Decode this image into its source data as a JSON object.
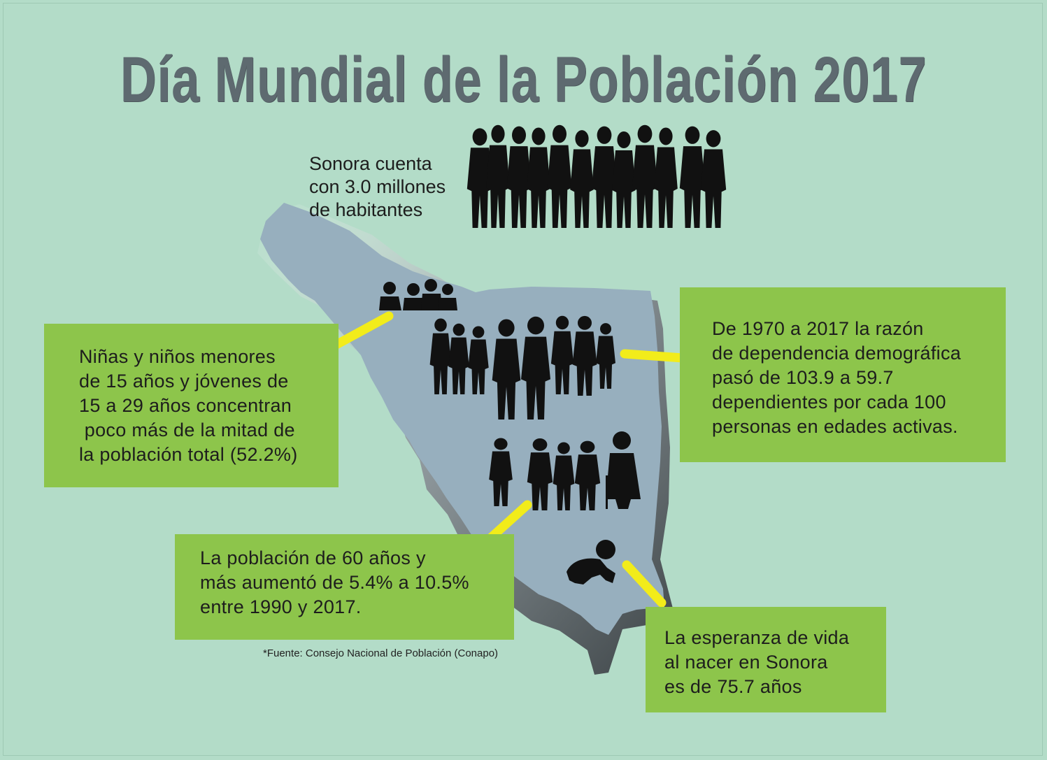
{
  "title": "Día Mundial de la Población 2017",
  "intro": "Sonora cuenta\ncon 3.0 millones\nde habitantes",
  "callouts": {
    "youth": "Niñas y niños menores\nde 15 años y jóvenes de\n15 a 29 años concentran\n poco más de la mitad de\nla población total (52.2%)",
    "dependency": "De 1970 a 2017 la razón\nde dependencia demográfica\npasó de 103.9 a 59.7\ndependientes por cada 100\npersonas en edades activas.",
    "elderly": "La población de 60 años y\nmás aumentó de 5.4% a 10.5%\nentre 1990 y 2017.",
    "life_expectancy": "La esperanza de vida\nal nacer en Sonora\nes de 75.7 años"
  },
  "source": "*Fuente: Consejo Nacional de Población (Conapo)",
  "colors": {
    "background": "#b3dcc8",
    "title": "#5e6a70",
    "map": "#97afbe",
    "callout_box": "#8dc54b",
    "connector": "#f2ec1a",
    "silhouette": "#111111"
  },
  "icons": [
    "crowd-silhouette",
    "children-silhouette",
    "adults-silhouette",
    "elderly-silhouette",
    "baby-crawling-silhouette"
  ]
}
